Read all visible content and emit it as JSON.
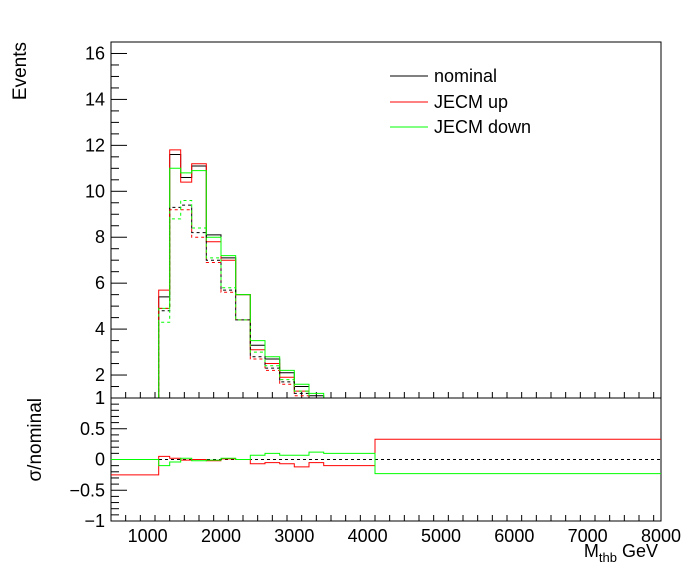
{
  "chart_data": [
    {
      "type": "line",
      "panel": "top",
      "ylabel": "Events",
      "ylim": [
        1,
        16.5
      ],
      "yticks": [
        1,
        2,
        4,
        6,
        8,
        10,
        12,
        14,
        16
      ],
      "xlim": [
        500,
        8000
      ],
      "legend_position": "top-right",
      "colors": {
        "nominal": "#000000",
        "up": "#ff0000",
        "down": "#00ff00"
      },
      "bin_edges": [
        500,
        1000,
        1150,
        1300,
        1450,
        1600,
        1800,
        2000,
        2200,
        2400,
        2600,
        2800,
        3000,
        3200,
        3400,
        3600,
        4100,
        8000
      ],
      "series": [
        {
          "name": "nominal",
          "style": "solid",
          "values": [
            0.3,
            0.3,
            5.4,
            11.6,
            10.6,
            11.1,
            8.1,
            7.1,
            5.5,
            3.3,
            2.7,
            2.1,
            1.5,
            1.1,
            0.4,
            0.4,
            0.35
          ]
        },
        {
          "name": "JECM up",
          "style": "solid",
          "values": [
            0.2,
            0.2,
            5.7,
            11.8,
            10.4,
            11.2,
            7.8,
            7.0,
            5.5,
            3.1,
            2.5,
            1.9,
            1.3,
            1.0,
            0.3,
            0.3,
            0.45
          ]
        },
        {
          "name": "JECM down",
          "style": "solid",
          "values": [
            0.35,
            0.35,
            4.9,
            11.0,
            10.8,
            10.9,
            8.0,
            7.2,
            5.5,
            3.5,
            2.8,
            2.2,
            1.6,
            1.2,
            0.4,
            0.4,
            0.25
          ]
        },
        {
          "name": "",
          "style": "dashed",
          "color": "#000000",
          "values": [
            0.15,
            0.15,
            4.8,
            9.3,
            9.4,
            8.2,
            7.0,
            5.7,
            4.4,
            2.8,
            2.3,
            1.7,
            1.2,
            0.8,
            0.25,
            0.25,
            0.2
          ]
        },
        {
          "name": "",
          "style": "dashed",
          "color": "#ff0000",
          "values": [
            0.15,
            0.15,
            4.9,
            9.2,
            9.2,
            8.0,
            6.9,
            5.6,
            4.4,
            2.7,
            2.2,
            1.6,
            1.1,
            0.7,
            0.2,
            0.2,
            0.25
          ]
        },
        {
          "name": "",
          "style": "dashed",
          "color": "#00ff00",
          "values": [
            0.15,
            0.15,
            4.3,
            8.8,
            9.6,
            8.4,
            7.1,
            5.8,
            4.4,
            3.0,
            2.4,
            1.8,
            1.3,
            0.9,
            0.3,
            0.3,
            0.15
          ]
        }
      ]
    },
    {
      "type": "line",
      "panel": "bottom",
      "xlabel": "M_thb GeV",
      "ylabel": "σ/nominal",
      "xlim": [
        500,
        8000
      ],
      "ylim": [
        -1,
        1
      ],
      "xticks": [
        1000,
        2000,
        3000,
        4000,
        5000,
        6000,
        7000,
        8000
      ],
      "yticks": [
        -1,
        -0.5,
        0,
        0.5,
        1
      ],
      "yticklabels": [
        "−1",
        "−0.5",
        "0",
        "0.5",
        "1"
      ],
      "reference_line": 0,
      "bin_edges": [
        500,
        1000,
        1150,
        1300,
        1450,
        1600,
        1800,
        2000,
        2200,
        2400,
        2600,
        2800,
        3000,
        3200,
        3400,
        3600,
        4100,
        8000
      ],
      "series": [
        {
          "name": "JECM up",
          "color": "#ff0000",
          "values": [
            -0.25,
            -0.25,
            0.05,
            0.02,
            -0.01,
            0.0,
            -0.02,
            0.01,
            0.0,
            -0.07,
            -0.05,
            -0.07,
            -0.12,
            -0.05,
            -0.1,
            -0.1,
            0.33
          ]
        },
        {
          "name": "JECM down",
          "color": "#00ff00",
          "values": [
            0.0,
            0.0,
            -0.1,
            -0.04,
            0.02,
            -0.02,
            -0.01,
            0.02,
            0.0,
            0.07,
            0.1,
            0.07,
            0.07,
            0.12,
            0.1,
            0.1,
            -0.23
          ]
        }
      ]
    }
  ],
  "labels": {
    "top_ylabel": "Events",
    "bottom_ylabel": "σ/nominal",
    "xlabel_main": "M",
    "xlabel_sub": "thb",
    "xlabel_unit": " GeV",
    "legend": [
      "nominal",
      "JECM up",
      "JECM down"
    ]
  }
}
